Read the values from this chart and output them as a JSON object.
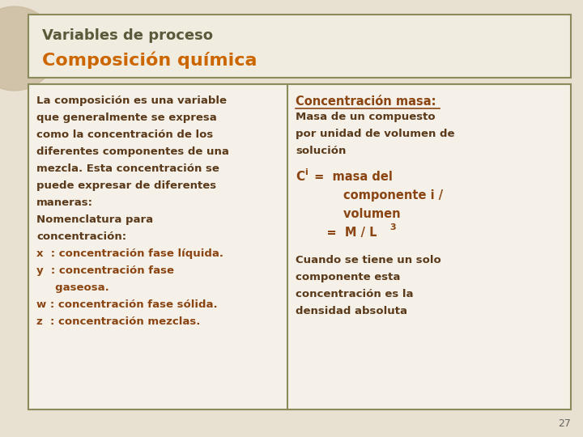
{
  "slide_bg": "#e8e0d0",
  "title_line1": "Variables de proceso",
  "title_line2": "Composición química",
  "title_line1_color": "#5a5a3a",
  "title_line2_color": "#cc6600",
  "left_col_text": [
    "La composición es una variable",
    "que generalmente se expresa",
    "como la concentración de los",
    "diferentes componentes de una",
    "mezcla. Esta concentración se",
    "puede expresar de diferentes",
    "maneras:",
    "Nomenclatura para",
    "concentración:",
    "x  : concentración fase líquida.",
    "y  : concentración fase",
    "     gaseosa.",
    "w : concentración fase sólida.",
    "z  : concentración mezclas."
  ],
  "left_col_bold_indices": [
    9,
    10,
    11,
    12,
    13
  ],
  "right_col_heading": "Concentración masa:",
  "right_col_text1": [
    "Masa de un compuesto",
    "por unidad de volumen de",
    "solución"
  ],
  "right_col_text2": [
    "Cuando se tiene un solo",
    "componente esta",
    "concentración es la",
    "densidad absoluta"
  ],
  "text_color": "#5a3a1a",
  "bold_color": "#8b4513",
  "page_number": "27",
  "border_color": "#8a8a5a",
  "divider_color": "#8a8a5a",
  "title_facecolor": "#f0ece0",
  "content_facecolor": "#f5f1e8",
  "circle_color": "#c8b89a"
}
